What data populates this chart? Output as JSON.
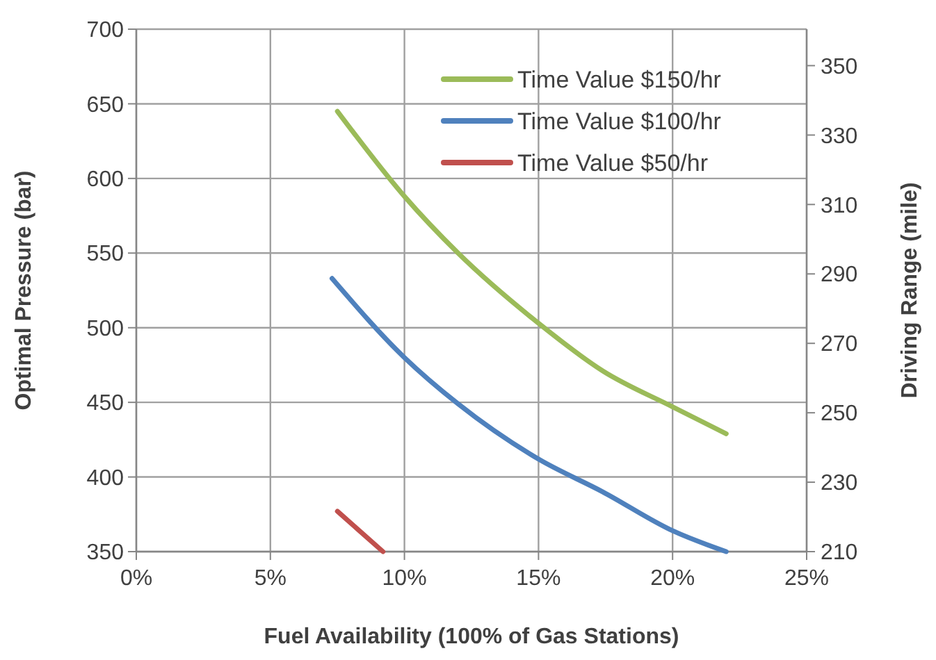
{
  "chart_data": {
    "type": "line",
    "xlabel": "Fuel Availability (100% of Gas Stations)",
    "ylabel": "Optimal Pressure (bar)",
    "y2label": "Driving Range (mile)",
    "xlim": [
      0,
      25
    ],
    "xticks": [
      {
        "value": 0,
        "label": "0%"
      },
      {
        "value": 5,
        "label": "5%"
      },
      {
        "value": 10,
        "label": "10%"
      },
      {
        "value": 15,
        "label": "15%"
      },
      {
        "value": 20,
        "label": "20%"
      },
      {
        "value": 25,
        "label": "25%"
      }
    ],
    "ylim": [
      350,
      700
    ],
    "yticks": [
      350,
      400,
      450,
      500,
      550,
      600,
      650,
      700
    ],
    "y2lim": [
      210,
      360.5
    ],
    "y2ticks": [
      210,
      230,
      250,
      270,
      290,
      310,
      330,
      350
    ],
    "grid": true,
    "legend": "top right",
    "marker": "none",
    "line_style": "solid",
    "series": [
      {
        "name": "Time Value $150/hr",
        "color": "#9bbb59",
        "x": [
          7.5,
          10.0,
          12.0,
          15.0,
          17.4,
          20.0,
          22.0
        ],
        "values": [
          645,
          588,
          550,
          503,
          471,
          447,
          429
        ]
      },
      {
        "name": "Time Value $100/hr",
        "color": "#4f81bd",
        "x": [
          7.3,
          10.0,
          12.0,
          15.0,
          17.4,
          20.0,
          22.0
        ],
        "values": [
          533,
          480,
          449,
          412,
          390,
          364,
          350
        ]
      },
      {
        "name": "Time Value $50/hr",
        "color": "#c0504d",
        "x": [
          7.5,
          9.2
        ],
        "values": [
          377,
          350
        ]
      }
    ]
  }
}
